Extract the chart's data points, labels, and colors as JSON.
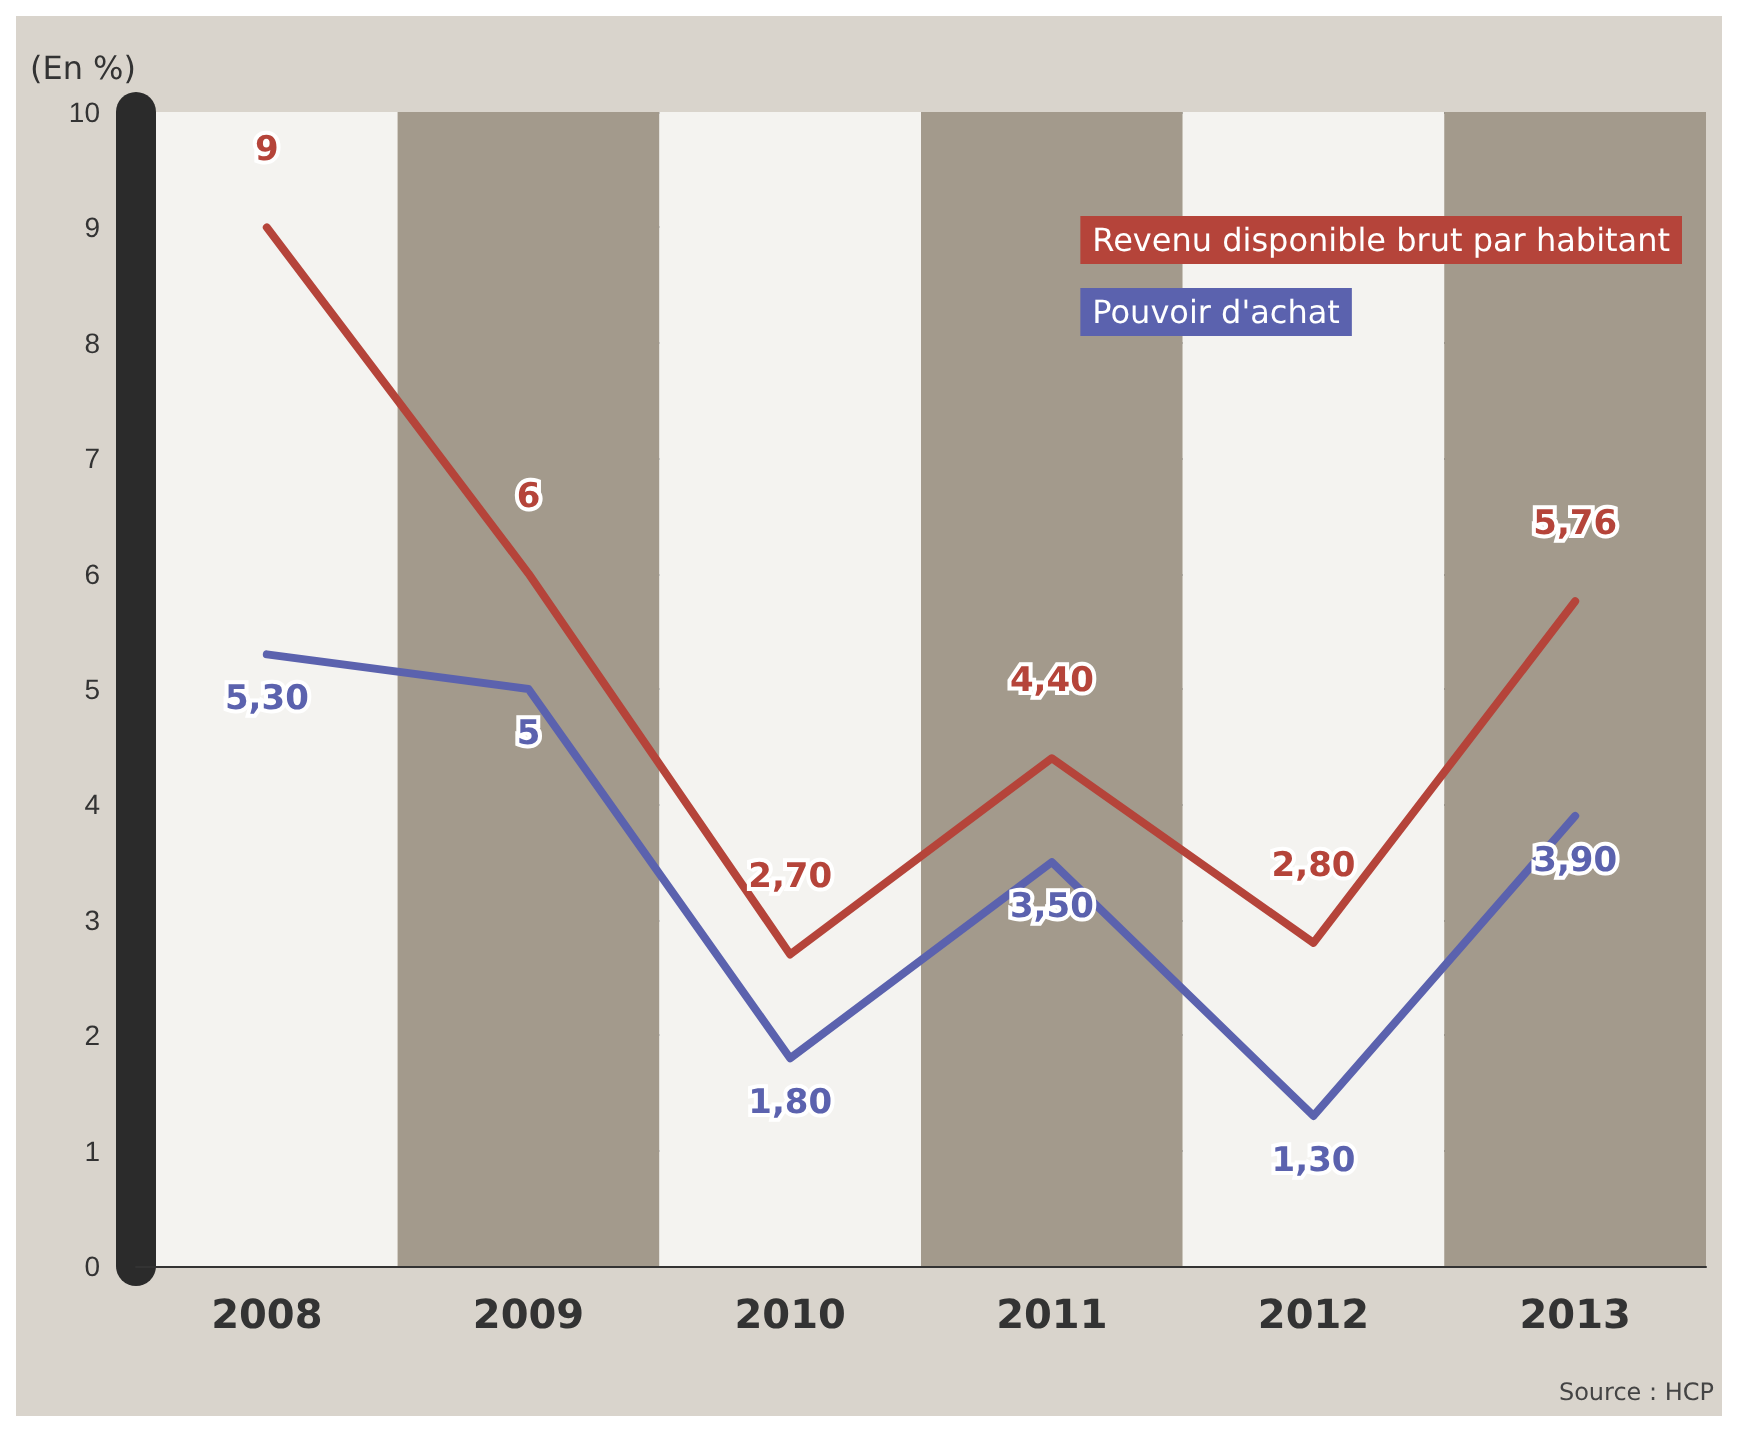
{
  "chart_data": {
    "type": "line",
    "ylabel": "(En %)",
    "categories": [
      "2008",
      "2009",
      "2010",
      "2011",
      "2012",
      "2013"
    ],
    "series": [
      {
        "name": "Revenu disponible brut par habitant",
        "color": "#b5443a",
        "values": [
          9,
          6,
          2.7,
          4.4,
          2.8,
          5.76
        ],
        "value_labels": [
          "9",
          "6",
          "2,70",
          "4,40",
          "2,80",
          "5,76"
        ]
      },
      {
        "name": "Pouvoir d'achat",
        "color": "#5b62ae",
        "values": [
          5.3,
          5,
          1.8,
          3.5,
          1.3,
          3.9
        ],
        "value_labels": [
          "5,30",
          "5",
          "1,80",
          "3,50",
          "1,30",
          "3,90"
        ]
      }
    ],
    "ylim": [
      0,
      10
    ],
    "yticks": [
      0,
      1,
      2,
      3,
      4,
      5,
      6,
      7,
      8,
      9,
      10
    ],
    "grid": "y",
    "legend": "top right",
    "marker": "none",
    "line_style": "solid",
    "annotations": [
      "Source : HCP"
    ]
  }
}
